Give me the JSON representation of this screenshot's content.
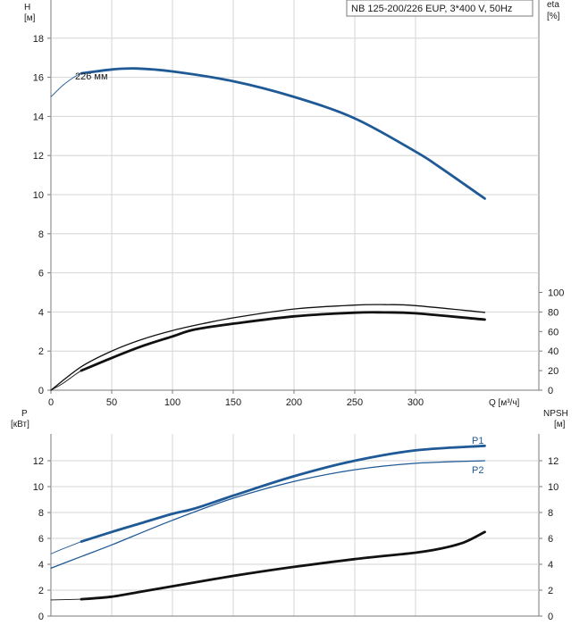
{
  "legend_box": "NB 125-200/226 EUP, 3*400 V, 50Hz",
  "colors": {
    "blue": "#1f5a96",
    "black": "#111111",
    "grid": "#d4d4d4",
    "axis": "#7a7a7a"
  },
  "chart_data": [
    {
      "type": "line",
      "ylabel_left": [
        "H",
        "[м]"
      ],
      "ylabel_right": [
        "eta",
        "[%]"
      ],
      "xlabel": "Q [м³/ч]",
      "xlim": [
        0,
        360
      ],
      "ylim_left": [
        0,
        20
      ],
      "ylim_right": [
        0,
        200
      ],
      "x_ticks": [
        "0",
        "50",
        "100",
        "150",
        "200",
        "250",
        "300"
      ],
      "y_ticks_left": [
        "0",
        "2",
        "4",
        "6",
        "8",
        "10",
        "12",
        "14",
        "16",
        "18"
      ],
      "y_ticks_right": [
        "0",
        "20",
        "40",
        "60",
        "80",
        "100"
      ],
      "grid": true,
      "annotations": [
        "226 мм"
      ],
      "series": [
        {
          "axis": "left",
          "style": "thin-extension",
          "color": "#1f5a96",
          "x": [
            0,
            10,
            20,
            25
          ],
          "y": [
            15.0,
            15.6,
            16.05,
            16.2
          ]
        },
        {
          "axis": "left",
          "style": "thick",
          "color": "#1f5a96",
          "x": [
            25,
            50,
            70,
            100,
            150,
            200,
            250,
            300,
            320,
            357
          ],
          "y": [
            16.2,
            16.4,
            16.45,
            16.3,
            15.8,
            15.0,
            13.9,
            12.2,
            11.4,
            9.8
          ]
        },
        {
          "axis": "right",
          "style": "thin",
          "color": "#111111",
          "x": [
            0,
            25,
            50,
            75,
            100,
            125,
            150,
            200,
            250,
            275,
            300,
            357
          ],
          "y": [
            0,
            24,
            40,
            52,
            61,
            68,
            74,
            83,
            87,
            87.5,
            86.5,
            79.5
          ]
        },
        {
          "axis": "right",
          "style": "thin-extension",
          "color": "#111111",
          "x": [
            0,
            10,
            20,
            25
          ],
          "y": [
            0,
            7,
            16,
            20
          ]
        },
        {
          "axis": "right",
          "style": "thick",
          "color": "#111111",
          "x": [
            25,
            50,
            75,
            100,
            118,
            150,
            200,
            250,
            275,
            300,
            357
          ],
          "y": [
            20,
            33,
            45,
            55,
            62,
            68,
            75.5,
            79.3,
            79.5,
            78.6,
            72.2
          ]
        }
      ]
    },
    {
      "type": "line",
      "ylabel_left": [
        "P",
        "[кВт]"
      ],
      "ylabel_right": [
        "NPSH",
        "[м]"
      ],
      "xlim": [
        0,
        360
      ],
      "ylim_left": [
        0,
        14
      ],
      "ylim_right": [
        0,
        14
      ],
      "y_ticks_left": [
        "0",
        "2",
        "4",
        "6",
        "8",
        "10",
        "12"
      ],
      "y_ticks_right": [
        "0",
        "2",
        "4",
        "6",
        "8",
        "10",
        "12"
      ],
      "grid": true,
      "series": [
        {
          "name": "P1",
          "axis": "left",
          "style": "thick",
          "color": "#1f5a96",
          "x": [
            25,
            50,
            75,
            100,
            118,
            150,
            200,
            250,
            300,
            357
          ],
          "y": [
            5.75,
            6.5,
            7.2,
            7.9,
            8.3,
            9.3,
            10.8,
            12.0,
            12.8,
            13.15
          ]
        },
        {
          "name": "P1-ext",
          "axis": "left",
          "style": "thin-extension",
          "color": "#1f5a96",
          "x": [
            0,
            10,
            25
          ],
          "y": [
            4.8,
            5.2,
            5.75
          ]
        },
        {
          "name": "P2",
          "axis": "left",
          "style": "thin",
          "color": "#1f5a96",
          "x": [
            0,
            25,
            50,
            100,
            150,
            200,
            250,
            300,
            357
          ],
          "y": [
            3.7,
            4.6,
            5.5,
            7.4,
            9.1,
            10.4,
            11.3,
            11.8,
            12.0
          ]
        },
        {
          "name": "NPSH",
          "axis": "right",
          "style": "thick",
          "color": "#111111",
          "x": [
            25,
            50,
            75,
            100,
            150,
            200,
            250,
            300,
            320,
            340,
            357
          ],
          "y": [
            1.3,
            1.5,
            1.9,
            2.3,
            3.1,
            3.8,
            4.4,
            4.9,
            5.2,
            5.7,
            6.5
          ]
        },
        {
          "name": "NPSH-ext",
          "axis": "right",
          "style": "thin-extension",
          "color": "#111111",
          "x": [
            0,
            25
          ],
          "y": [
            1.25,
            1.3
          ]
        }
      ],
      "series_labels": [
        "P1",
        "P2"
      ]
    }
  ]
}
